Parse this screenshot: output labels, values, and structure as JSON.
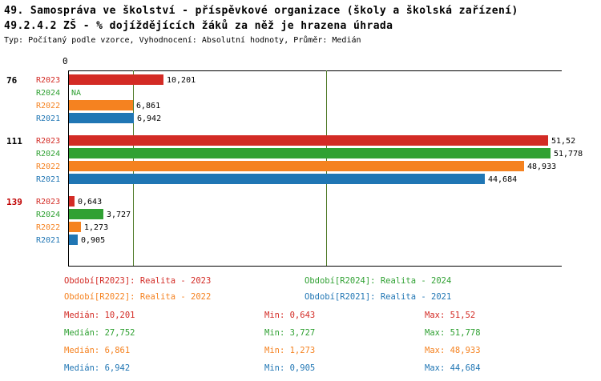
{
  "header": {
    "title_line1": "49. Samospráva ve školství - příspěvkové organizace (školy a školská zařízení)",
    "title_line2": "49.2.4.2 ZŠ - % dojíždějících žáků za něž je hrazena úhrada",
    "meta": "Typ: Počítaný podle vzorce, Vyhodnocení: Absolutní hodnoty, Průměr: Medián"
  },
  "colors": {
    "r2023": "#d32b25",
    "r2024": "#30a133",
    "r2022": "#f58220",
    "r2021": "#2076b4",
    "reference_line": "#4f7a28",
    "axis": "#000000",
    "highlight_group_label": "#c00000",
    "value_label": "#000000"
  },
  "chart_data": {
    "type": "bar",
    "orientation": "horizontal",
    "origin_label": "0",
    "value_axis_max": 53,
    "series_order": [
      "R2023",
      "R2024",
      "R2022",
      "R2021"
    ],
    "reference_lines": [
      6.942,
      27.752
    ],
    "groups": [
      {
        "label": "76",
        "label_color": "#000000",
        "bars": [
          {
            "series": "R2023",
            "value": 10.201,
            "value_label": "10,201"
          },
          {
            "series": "R2024",
            "value": null,
            "value_label": "NA"
          },
          {
            "series": "R2022",
            "value": 6.861,
            "value_label": "6,861"
          },
          {
            "series": "R2021",
            "value": 6.942,
            "value_label": "6,942"
          }
        ]
      },
      {
        "label": "111",
        "label_color": "#000000",
        "bars": [
          {
            "series": "R2023",
            "value": 51.52,
            "value_label": "51,52"
          },
          {
            "series": "R2024",
            "value": 51.778,
            "value_label": "51,778"
          },
          {
            "series": "R2022",
            "value": 48.933,
            "value_label": "48,933"
          },
          {
            "series": "R2021",
            "value": 44.684,
            "value_label": "44,684"
          }
        ]
      },
      {
        "label": "139",
        "label_color": "#c00000",
        "bars": [
          {
            "series": "R2023",
            "value": 0.643,
            "value_label": "0,643"
          },
          {
            "series": "R2024",
            "value": 3.727,
            "value_label": "3,727"
          },
          {
            "series": "R2022",
            "value": 1.273,
            "value_label": "1,273"
          },
          {
            "series": "R2021",
            "value": 0.905,
            "value_label": "0,905"
          }
        ]
      }
    ]
  },
  "legend": [
    {
      "series": "R2023",
      "text": "Období[R2023]: Realita - 2023"
    },
    {
      "series": "R2024",
      "text": "Období[R2024]: Realita - 2024"
    },
    {
      "series": "R2022",
      "text": "Období[R2022]: Realita - 2022"
    },
    {
      "series": "R2021",
      "text": "Období[R2021]: Realita - 2021"
    }
  ],
  "stats": [
    {
      "series": "R2023",
      "median": "Medián: 10,201",
      "min": "Min: 0,643",
      "max": "Max: 51,52"
    },
    {
      "series": "R2024",
      "median": "Medián: 27,752",
      "min": "Min: 3,727",
      "max": "Max: 51,778"
    },
    {
      "series": "R2022",
      "median": "Medián: 6,861",
      "min": "Min: 1,273",
      "max": "Max: 48,933"
    },
    {
      "series": "R2021",
      "median": "Medián: 6,942",
      "min": "Min: 0,905",
      "max": "Max: 44,684"
    }
  ]
}
